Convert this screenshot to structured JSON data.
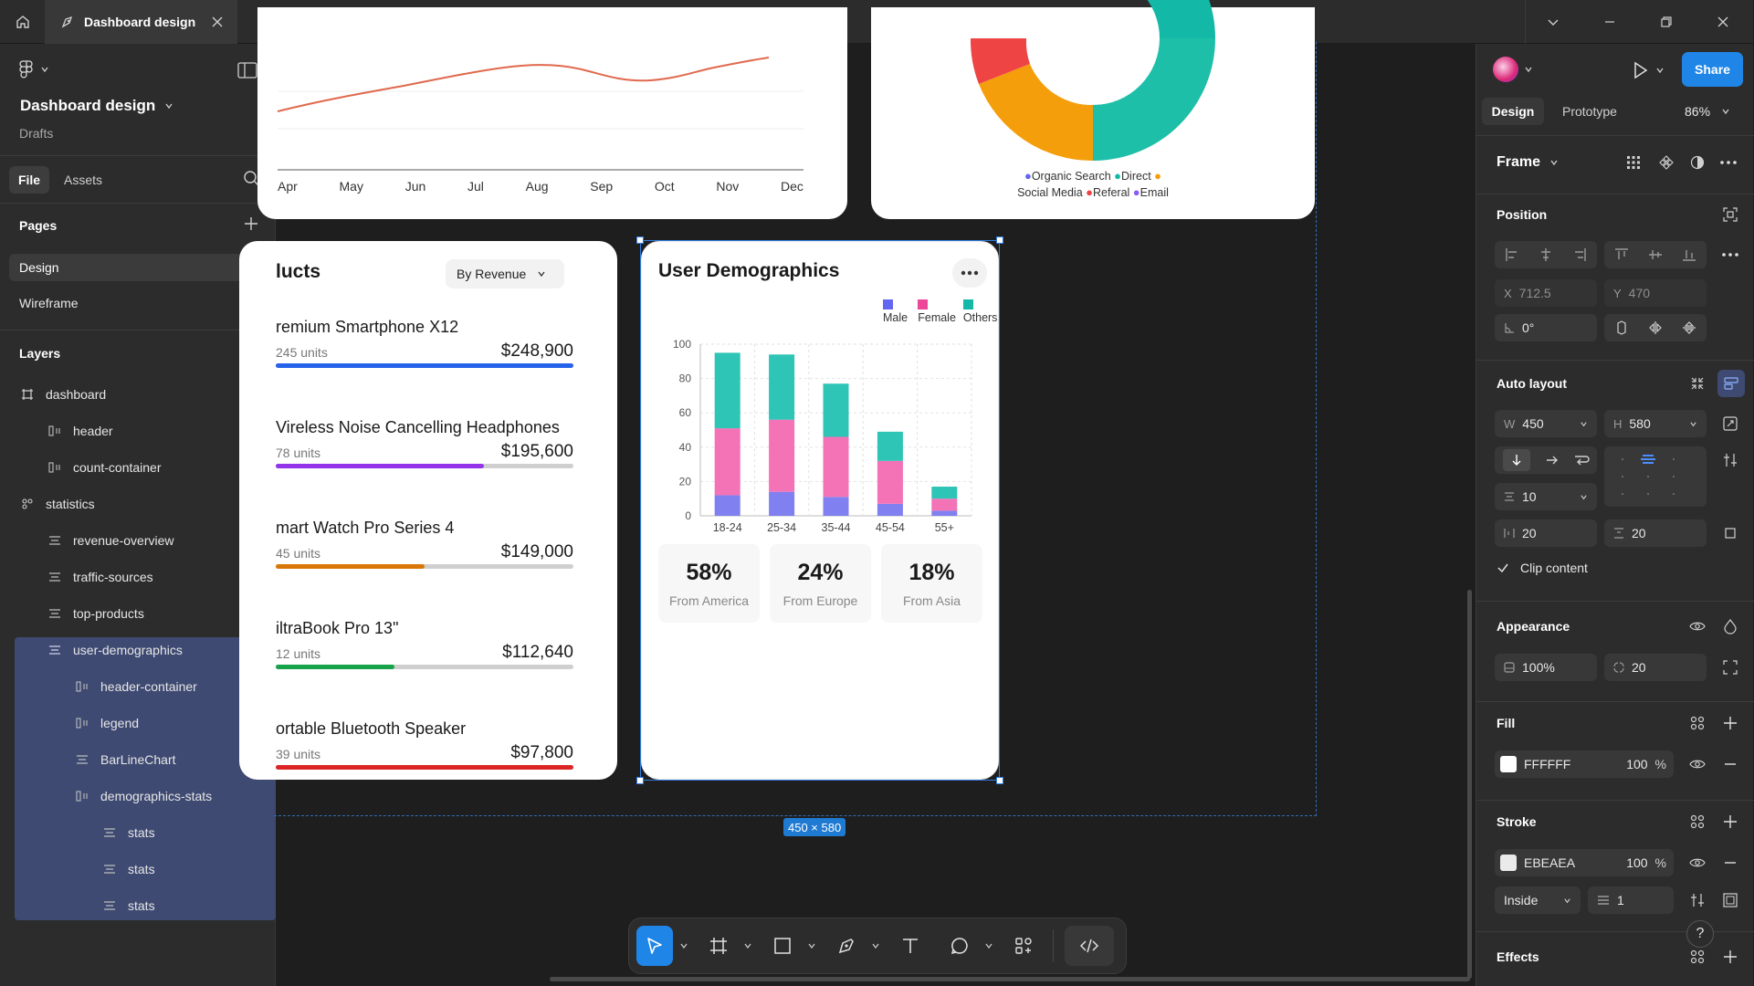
{
  "window": {
    "tab_title": "Dashboard design"
  },
  "left_panel": {
    "project_title": "Dashboard design",
    "project_location": "Drafts",
    "tabs": [
      "File",
      "Assets"
    ],
    "pages_label": "Pages",
    "pages": [
      "Design",
      "Wireframe"
    ],
    "layers_label": "Layers",
    "layers": [
      {
        "name": "dashboard",
        "icon": "frame-icon"
      },
      {
        "name": "header",
        "icon": "autolayout-icon"
      },
      {
        "name": "count-container",
        "icon": "autolayout-icon"
      },
      {
        "name": "statistics",
        "icon": "component-icon"
      },
      {
        "name": "revenue-overview",
        "icon": "autolayout-horizontal-icon"
      },
      {
        "name": "traffic-sources",
        "icon": "autolayout-horizontal-icon"
      },
      {
        "name": "top-products",
        "icon": "autolayout-horizontal-icon"
      },
      {
        "name": "user-demographics",
        "icon": "autolayout-horizontal-icon"
      },
      {
        "name": "header-container",
        "icon": "autolayout-icon"
      },
      {
        "name": "legend",
        "icon": "autolayout-icon"
      },
      {
        "name": "BarLineChart",
        "icon": "autolayout-horizontal-icon"
      },
      {
        "name": "demographics-stats",
        "icon": "autolayout-icon"
      },
      {
        "name": "stats",
        "icon": "autolayout-horizontal-icon"
      },
      {
        "name": "stats",
        "icon": "autolayout-horizontal-icon"
      },
      {
        "name": "stats",
        "icon": "autolayout-horizontal-icon"
      }
    ]
  },
  "canvas": {
    "revenue_months": [
      "Apr",
      "May",
      "Jun",
      "Jul",
      "Aug",
      "Sep",
      "Oct",
      "Nov",
      "Dec"
    ],
    "traffic_legend": [
      {
        "label": "Organic Search",
        "color": "#6366f1"
      },
      {
        "label": "Direct",
        "color": "#14b8a6"
      },
      {
        "label": "",
        "color": "#f59e0b"
      },
      {
        "label": "Social Media",
        "color": ""
      },
      {
        "label": "Referal",
        "color": "#ef4444"
      },
      {
        "label": "Email",
        "color": "#8b5cf6"
      }
    ],
    "products": {
      "title_partial": "lucts",
      "sort_label": "By Revenue",
      "items": [
        {
          "name": "remium Smartphone X12",
          "units": "245 units",
          "revenue": "$248,900",
          "fill": 1.0,
          "color": "#2563eb"
        },
        {
          "name": "Vireless Noise Cancelling Headphones",
          "units": "78 units",
          "revenue": "$195,600",
          "fill": 0.7,
          "color": "#9333ea"
        },
        {
          "name": "mart Watch Pro Series 4",
          "units": "45 units",
          "revenue": "$149,000",
          "fill": 0.5,
          "color": "#d97706"
        },
        {
          "name": "iltraBook Pro 13\"",
          "units": "12 units",
          "revenue": "$112,640",
          "fill": 0.4,
          "color": "#16a34a"
        },
        {
          "name": "ortable Bluetooth Speaker",
          "units": "39 units",
          "revenue": "$97,800",
          "fill": 1.0,
          "color": "#dc2626"
        }
      ]
    },
    "demographics": {
      "title": "User Demographics",
      "stats": [
        {
          "value": "58%",
          "label": "From America"
        },
        {
          "value": "24%",
          "label": "From Europe"
        },
        {
          "value": "18%",
          "label": "From Asia"
        }
      ],
      "size_badge": "450 × 580"
    }
  },
  "chart_data": {
    "type": "bar",
    "stacked": true,
    "categories": [
      "18-24",
      "25-34",
      "35-44",
      "45-54",
      "55+"
    ],
    "series": [
      {
        "name": "Male",
        "color": "#8080f0",
        "values": [
          12,
          14,
          11,
          7,
          3
        ]
      },
      {
        "name": "Female",
        "color": "#f472b6",
        "values": [
          39,
          42,
          35,
          25,
          7
        ]
      },
      {
        "name": "Others",
        "color": "#2ec4b6",
        "values": [
          44,
          38,
          31,
          17,
          7
        ]
      }
    ],
    "ylim": [
      0,
      100
    ],
    "yticks": [
      0,
      20,
      40,
      60,
      80,
      100
    ],
    "grid": true,
    "legend_position": "top-right"
  },
  "right_panel": {
    "tabs": [
      "Design",
      "Prototype"
    ],
    "zoom": "86%",
    "share_label": "Share",
    "frame_label": "Frame",
    "position_label": "Position",
    "x_label": "X",
    "x_value": "712.5",
    "y_label": "Y",
    "y_value": "470",
    "rotation": "0°",
    "auto_layout_label": "Auto layout",
    "w_label": "W",
    "w_value": "450",
    "h_label": "H",
    "h_value": "580",
    "gap": "10",
    "padding_h": "20",
    "padding_v": "20",
    "clip_label": "Clip content",
    "appearance_label": "Appearance",
    "opacity": "100%",
    "radius": "20",
    "fill_label": "Fill",
    "fill_hex": "FFFFFF",
    "fill_opacity": "100",
    "percent": "%",
    "stroke_label": "Stroke",
    "stroke_hex": "EBEAEA",
    "stroke_opacity": "100",
    "stroke_position": "Inside",
    "stroke_weight": "1",
    "effects_label": "Effects",
    "help": "?"
  }
}
